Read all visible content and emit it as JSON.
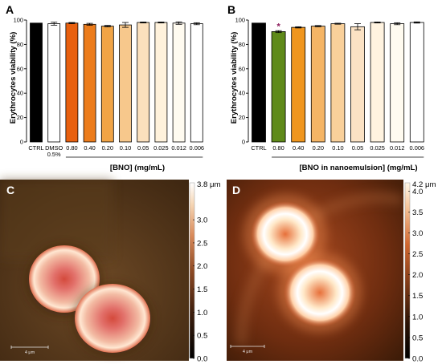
{
  "chart_data": [
    {
      "panel": "A",
      "type": "bar",
      "ylabel": "Erythrocytes viability (%)",
      "xlabel": "[BNO] (mg/mL)",
      "ylim": [
        0,
        100
      ],
      "yticks": [
        0,
        20,
        40,
        60,
        80,
        100
      ],
      "categories": [
        "CTRL",
        "DMSO 0.5%",
        "0.80",
        "0.40",
        "0.20",
        "0.10",
        "0.05",
        "0.025",
        "0.012",
        "0.006"
      ],
      "values": [
        97.5,
        97,
        97.5,
        96.5,
        95,
        96,
        98,
        98,
        97.5,
        97
      ],
      "errors": [
        0,
        1.2,
        0.5,
        0.8,
        0.6,
        2.0,
        0.4,
        0.4,
        1.0,
        0.8
      ],
      "colors": [
        "#000000",
        "#ffffff",
        "#e8600f",
        "#ec7c1c",
        "#f1a446",
        "#f7c88c",
        "#fbe0bd",
        "#fff2dc",
        "#fffbf0",
        "#ffffff"
      ],
      "bracket_from": "0.80",
      "bracket_to": "0.006"
    },
    {
      "panel": "B",
      "type": "bar",
      "ylabel": "Erythrocytes viability (%)",
      "xlabel": "[BNO in nanoemulsion] (mg/mL)",
      "ylim": [
        0,
        100
      ],
      "yticks": [
        0,
        20,
        40,
        60,
        80,
        100
      ],
      "categories": [
        "CTRL",
        "0.80",
        "0.40",
        "0.20",
        "0.10",
        "0.05",
        "0.025",
        "0.012",
        "0.006"
      ],
      "values": [
        97.5,
        90.5,
        94,
        95,
        97,
        94.5,
        98,
        97,
        98
      ],
      "errors": [
        0,
        0.8,
        0.5,
        0.5,
        0.4,
        2.5,
        0.4,
        0.8,
        0.5
      ],
      "colors": [
        "#000000",
        "#5f8a1a",
        "#f0961e",
        "#f5b565",
        "#f9d09a",
        "#fbe2c4",
        "#fff3e0",
        "#fffbf0",
        "#ffffff"
      ],
      "annotations": [
        {
          "category": "0.80",
          "text": "*",
          "color": "#8b1a5a"
        }
      ],
      "bracket_from": "0.80",
      "bracket_to": "0.006"
    },
    {
      "panel": "C",
      "type": "heatmap",
      "colorbar_max_label": "3.8 μm",
      "colorbar_ticks": [
        "3.0",
        "2.5",
        "2.0",
        "1.5",
        "1.0",
        "0.5",
        "0.0"
      ],
      "colorbar_tick_values": [
        3.0,
        2.5,
        2.0,
        1.5,
        1.0,
        0.5,
        0.0
      ],
      "colorbar_max": 3.8,
      "scale_bar": "4 μm"
    },
    {
      "panel": "D",
      "type": "heatmap",
      "colorbar_max_label": "4.2 μm",
      "colorbar_ticks": [
        "4.0",
        "3.5",
        "3.0",
        "2.5",
        "2.0",
        "1.5",
        "1.0",
        "0.5",
        "0.0"
      ],
      "colorbar_tick_values": [
        4.0,
        3.5,
        3.0,
        2.5,
        2.0,
        1.5,
        1.0,
        0.5,
        0.0
      ],
      "colorbar_max": 4.2,
      "scale_bar": "4 μm"
    }
  ]
}
